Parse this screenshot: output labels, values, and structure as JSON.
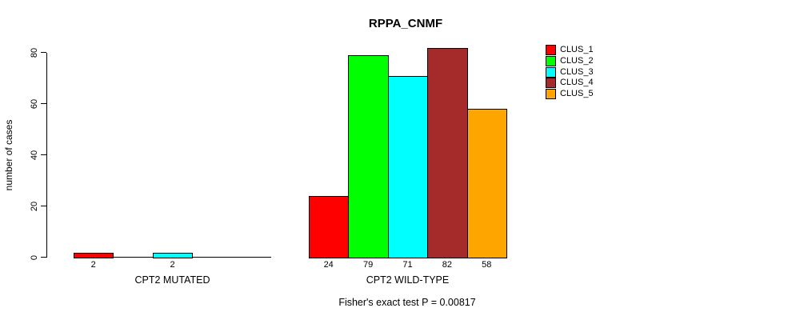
{
  "chart_data": {
    "type": "bar",
    "title": "RPPA_CNMF",
    "ylabel": "number of cases",
    "xlabel": "",
    "categories": [
      "CPT2 MUTATED",
      "CPT2 WILD-TYPE"
    ],
    "series": [
      {
        "name": "CLUS_1",
        "color": "#FF0000",
        "values": [
          2,
          24
        ]
      },
      {
        "name": "CLUS_2",
        "color": "#00FF00",
        "values": [
          0,
          79
        ]
      },
      {
        "name": "CLUS_3",
        "color": "#00FFFF",
        "values": [
          2,
          71
        ]
      },
      {
        "name": "CLUS_4",
        "color": "#A52A2A",
        "values": [
          0,
          82
        ]
      },
      {
        "name": "CLUS_5",
        "color": "#FFA500",
        "values": [
          0,
          58
        ]
      }
    ],
    "bar_value_labels": [
      [
        "2",
        "",
        "2",
        "",
        ""
      ],
      [
        "24",
        "79",
        "71",
        "82",
        "58"
      ]
    ],
    "ylim": [
      0,
      80
    ],
    "yticks": [
      0,
      20,
      40,
      60,
      80
    ],
    "grid": false,
    "legend_position": "right",
    "legend_entries": [
      "CLUS_1",
      "CLUS_2",
      "CLUS_3",
      "CLUS_4",
      "CLUS_5"
    ],
    "annotation": "Fisher's exact test P = 0.00817"
  }
}
